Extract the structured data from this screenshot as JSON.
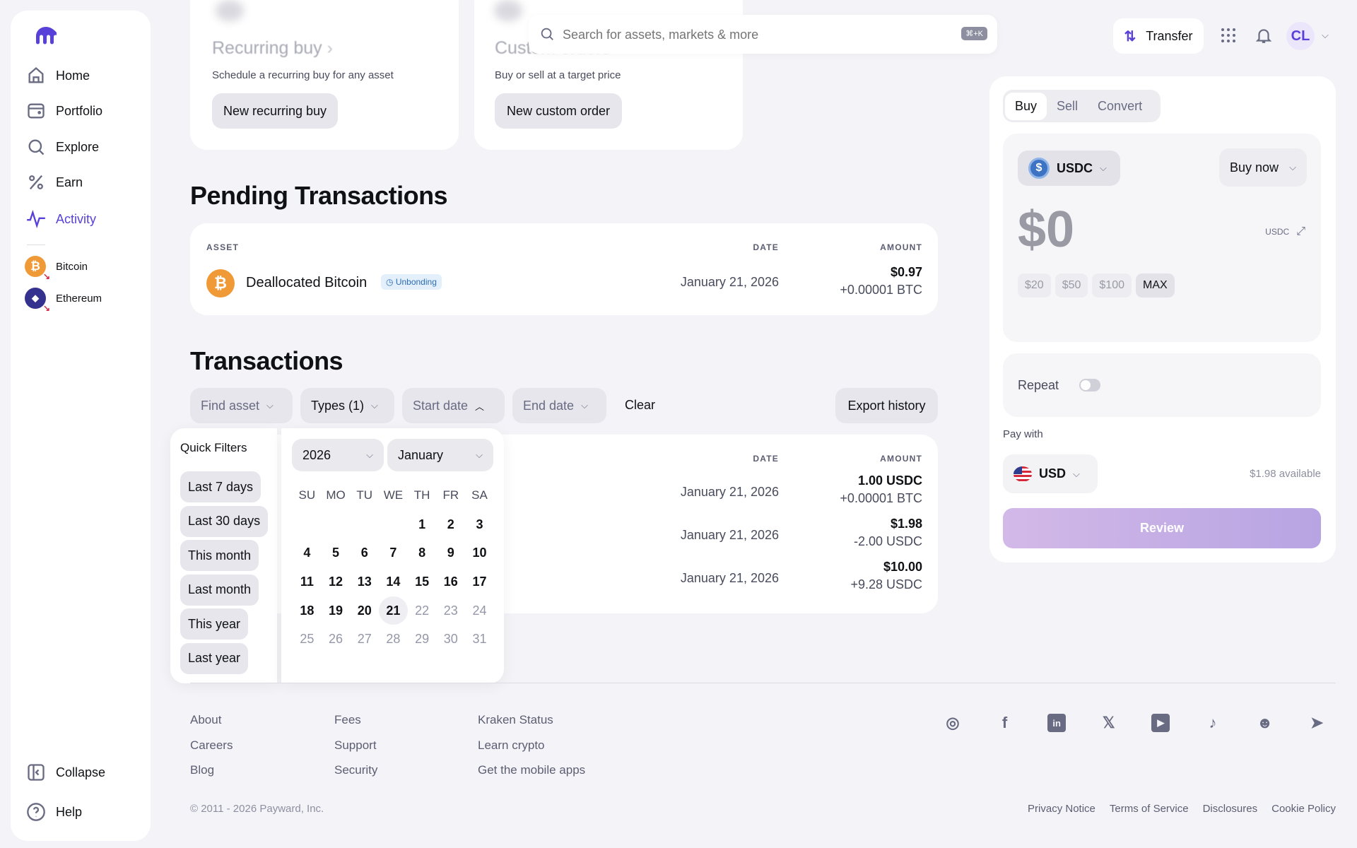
{
  "brand": {
    "accent": "#5741d9"
  },
  "sidebar": {
    "items": [
      {
        "label": "Home",
        "icon": "home-icon"
      },
      {
        "label": "Portfolio",
        "icon": "wallet-icon"
      },
      {
        "label": "Explore",
        "icon": "search-icon"
      },
      {
        "label": "Earn",
        "icon": "percent-icon"
      },
      {
        "label": "Activity",
        "icon": "activity-icon",
        "active": true
      }
    ],
    "assets": [
      {
        "label": "Bitcoin",
        "symbol": "₿"
      },
      {
        "label": "Ethereum",
        "symbol": "◆"
      }
    ],
    "collapse": "Collapse",
    "help": "Help"
  },
  "header": {
    "search_placeholder": "Search for assets, markets & more",
    "shortcut": "⌘+K",
    "transfer": "Transfer",
    "avatar": "CL"
  },
  "promo": [
    {
      "title": "Recurring buy",
      "desc": "Schedule a recurring buy for any asset",
      "button": "New recurring buy"
    },
    {
      "title": "Custom orders",
      "desc": "Buy or sell at a target price",
      "button": "New custom order"
    }
  ],
  "pending": {
    "title": "Pending Transactions",
    "columns": {
      "asset": "ASSET",
      "date": "DATE",
      "amount": "AMOUNT"
    },
    "rows": [
      {
        "asset": "Deallocated Bitcoin",
        "badge": "Unbonding",
        "date": "January 21, 2026",
        "amount": "$0.97",
        "sub": "+0.00001 BTC"
      }
    ]
  },
  "transactions": {
    "title": "Transactions",
    "filters": {
      "find_asset": "Find asset",
      "types": "Types (1)",
      "start_date": "Start date",
      "end_date": "End date",
      "clear": "Clear",
      "export": "Export history"
    },
    "columns": {
      "date": "DATE",
      "amount": "AMOUNT"
    },
    "rows": [
      {
        "date": "January 21, 2026",
        "amount": "1.00 USDC",
        "sub": "+0.00001 BTC"
      },
      {
        "date": "January 21, 2026",
        "amount": "$1.98",
        "sub": "-2.00 USDC"
      },
      {
        "date": "January 21, 2026",
        "amount": "$10.00",
        "sub": "+9.28 USDC"
      }
    ]
  },
  "datepicker": {
    "quick_title": "Quick Filters",
    "quick": [
      "Last 7 days",
      "Last 30 days",
      "This month",
      "Last month",
      "This year",
      "Last year"
    ],
    "year": "2026",
    "month": "January",
    "weekdays": [
      "SU",
      "MO",
      "TU",
      "WE",
      "TH",
      "FR",
      "SA"
    ],
    "first_weekday": 4,
    "days_in_month": 31,
    "today": 21
  },
  "trade": {
    "tabs": [
      "Buy",
      "Sell",
      "Convert"
    ],
    "active_tab": "Buy",
    "asset": "USDC",
    "order_type": "Buy now",
    "amount": "$0",
    "unit": "USDC",
    "presets": [
      "$20",
      "$50",
      "$100",
      "MAX"
    ],
    "repeat": "Repeat",
    "repeat_on": false,
    "pay_with_label": "Pay with",
    "pay_currency": "USD",
    "available": "$1.98 available",
    "review": "Review"
  },
  "footer": {
    "links": [
      [
        "About",
        "Careers",
        "Blog"
      ],
      [
        "Fees",
        "Support",
        "Security"
      ],
      [
        "Kraken Status",
        "Learn crypto",
        "Get the mobile apps"
      ]
    ],
    "social": [
      "instagram-icon",
      "facebook-icon",
      "linkedin-icon",
      "x-icon",
      "youtube-icon",
      "tiktok-icon",
      "reddit-icon",
      "telegram-icon"
    ],
    "copyright": "© 2011 - 2026 Payward, Inc.",
    "legal": [
      "Privacy Notice",
      "Terms of Service",
      "Disclosures",
      "Cookie Policy"
    ]
  }
}
